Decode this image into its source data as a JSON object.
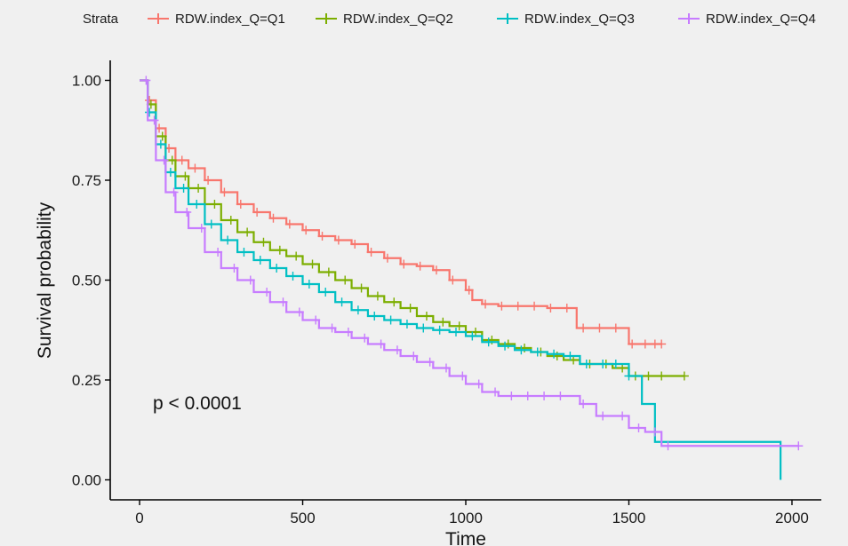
{
  "chart_data": {
    "type": "line",
    "subtype": "kaplan-meier",
    "xlabel": "Time",
    "ylabel": "Survival probability",
    "xlim": [
      -90,
      2090
    ],
    "ylim": [
      -0.05,
      1.05
    ],
    "x_ticks": [
      0,
      500,
      1000,
      1500,
      2000
    ],
    "y_ticks": [
      0,
      0.25,
      0.5,
      0.75,
      1
    ],
    "x_tick_labels": [
      "0",
      "500",
      "1000",
      "1500",
      "2000"
    ],
    "y_tick_labels": [
      "0.00",
      "0.25",
      "0.50",
      "0.75",
      "1.00"
    ],
    "grid": false,
    "legend_title": "Strata",
    "legend_position": "top",
    "annotation": "p < 0.0001",
    "series": [
      {
        "name": "RDW.index_Q=Q1",
        "color": "#f8766d",
        "x": [
          0,
          25,
          50,
          80,
          110,
          150,
          200,
          250,
          300,
          350,
          400,
          450,
          500,
          550,
          600,
          650,
          700,
          750,
          800,
          850,
          900,
          950,
          1000,
          1020,
          1050,
          1100,
          1150,
          1200,
          1250,
          1300,
          1340,
          1400,
          1450,
          1500,
          1540,
          1600
        ],
        "y": [
          1.0,
          0.95,
          0.88,
          0.83,
          0.8,
          0.78,
          0.75,
          0.72,
          0.69,
          0.67,
          0.655,
          0.64,
          0.625,
          0.61,
          0.6,
          0.59,
          0.57,
          0.555,
          0.54,
          0.535,
          0.525,
          0.5,
          0.475,
          0.45,
          0.44,
          0.435,
          0.435,
          0.435,
          0.43,
          0.43,
          0.38,
          0.38,
          0.38,
          0.34,
          0.34,
          0.34
        ],
        "censor_x": [
          30,
          60,
          90,
          130,
          170,
          210,
          260,
          310,
          360,
          410,
          460,
          510,
          560,
          610,
          660,
          710,
          760,
          810,
          860,
          910,
          960,
          1010,
          1060,
          1110,
          1160,
          1210,
          1260,
          1310,
          1360,
          1410,
          1460,
          1510,
          1550,
          1580,
          1600
        ]
      },
      {
        "name": "RDW.index_Q=Q2",
        "color": "#7cae00",
        "x": [
          0,
          25,
          50,
          80,
          110,
          150,
          200,
          250,
          300,
          350,
          400,
          450,
          500,
          550,
          600,
          650,
          700,
          750,
          800,
          850,
          900,
          950,
          1000,
          1050,
          1100,
          1150,
          1200,
          1250,
          1300,
          1350,
          1400,
          1450,
          1500,
          1550,
          1600,
          1670
        ],
        "y": [
          1.0,
          0.94,
          0.86,
          0.8,
          0.76,
          0.73,
          0.69,
          0.65,
          0.62,
          0.595,
          0.575,
          0.56,
          0.54,
          0.52,
          0.5,
          0.48,
          0.46,
          0.445,
          0.43,
          0.41,
          0.395,
          0.385,
          0.37,
          0.35,
          0.34,
          0.33,
          0.32,
          0.31,
          0.3,
          0.29,
          0.29,
          0.28,
          0.26,
          0.26,
          0.26,
          0.26
        ],
        "censor_x": [
          35,
          70,
          100,
          140,
          180,
          230,
          280,
          330,
          380,
          430,
          480,
          530,
          580,
          630,
          680,
          730,
          780,
          830,
          880,
          930,
          980,
          1030,
          1080,
          1130,
          1180,
          1230,
          1280,
          1330,
          1380,
          1430,
          1480,
          1520,
          1560,
          1600,
          1670
        ]
      },
      {
        "name": "RDW.index_Q=Q3",
        "color": "#00bfc4",
        "x": [
          0,
          25,
          50,
          80,
          110,
          150,
          200,
          250,
          300,
          350,
          400,
          450,
          500,
          550,
          600,
          650,
          700,
          750,
          800,
          850,
          900,
          950,
          1000,
          1050,
          1100,
          1150,
          1200,
          1250,
          1300,
          1350,
          1400,
          1450,
          1500,
          1540,
          1580,
          1960,
          1965
        ],
        "y": [
          1.0,
          0.92,
          0.84,
          0.77,
          0.73,
          0.69,
          0.64,
          0.6,
          0.57,
          0.55,
          0.53,
          0.51,
          0.49,
          0.47,
          0.445,
          0.425,
          0.41,
          0.4,
          0.39,
          0.38,
          0.375,
          0.37,
          0.36,
          0.345,
          0.335,
          0.325,
          0.32,
          0.315,
          0.31,
          0.29,
          0.29,
          0.29,
          0.26,
          0.19,
          0.095,
          0.095,
          0.0
        ],
        "censor_x": [
          30,
          65,
          95,
          135,
          175,
          220,
          270,
          320,
          370,
          420,
          470,
          520,
          570,
          620,
          670,
          720,
          770,
          820,
          870,
          920,
          970,
          1020,
          1070,
          1120,
          1170,
          1220,
          1270,
          1320,
          1370,
          1420,
          1460,
          1500
        ]
      },
      {
        "name": "RDW.index_Q=Q4",
        "color": "#c77cff",
        "x": [
          0,
          25,
          50,
          80,
          110,
          150,
          200,
          250,
          300,
          350,
          400,
          450,
          500,
          550,
          600,
          650,
          700,
          750,
          800,
          850,
          900,
          950,
          1000,
          1050,
          1100,
          1150,
          1200,
          1250,
          1300,
          1350,
          1400,
          1450,
          1500,
          1550,
          1600,
          1700,
          2020
        ],
        "y": [
          1.0,
          0.9,
          0.8,
          0.72,
          0.67,
          0.63,
          0.57,
          0.53,
          0.5,
          0.47,
          0.445,
          0.42,
          0.4,
          0.38,
          0.37,
          0.355,
          0.34,
          0.325,
          0.31,
          0.295,
          0.28,
          0.26,
          0.24,
          0.22,
          0.21,
          0.21,
          0.21,
          0.21,
          0.21,
          0.19,
          0.16,
          0.16,
          0.13,
          0.12,
          0.085,
          0.085,
          0.085
        ],
        "censor_x": [
          20,
          45,
          75,
          105,
          145,
          190,
          240,
          290,
          340,
          390,
          440,
          490,
          540,
          590,
          640,
          690,
          740,
          790,
          840,
          890,
          940,
          990,
          1040,
          1090,
          1140,
          1190,
          1240,
          1290,
          1360,
          1420,
          1480,
          1530,
          1580,
          1620,
          2020
        ]
      }
    ]
  }
}
